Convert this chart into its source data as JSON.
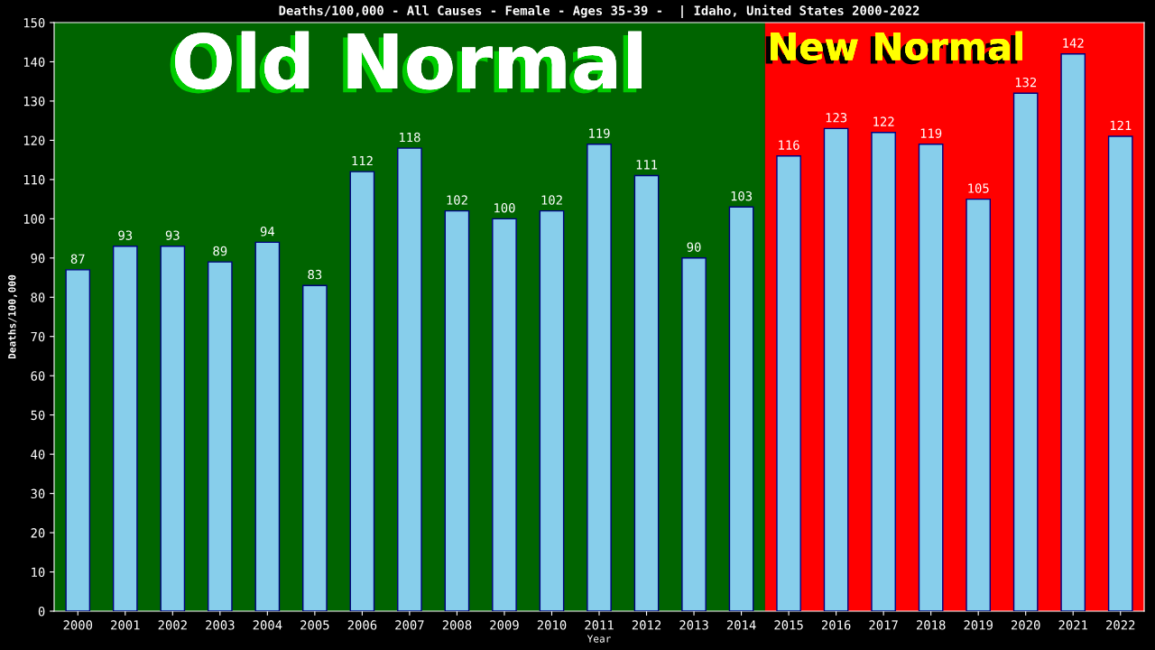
{
  "chart_data": {
    "type": "bar",
    "title": "Deaths/100,000 - All Causes - Female - Ages 35-39 -  | Idaho, United States 2000-2022",
    "xlabel": "Year",
    "ylabel": "Deaths/100,000",
    "categories": [
      "2000",
      "2001",
      "2002",
      "2003",
      "2004",
      "2005",
      "2006",
      "2007",
      "2008",
      "2009",
      "2010",
      "2011",
      "2012",
      "2013",
      "2014",
      "2015",
      "2016",
      "2017",
      "2018",
      "2019",
      "2020",
      "2021",
      "2022"
    ],
    "values": [
      87,
      93,
      93,
      89,
      94,
      83,
      112,
      118,
      102,
      100,
      102,
      119,
      111,
      90,
      103,
      116,
      123,
      122,
      119,
      105,
      132,
      142,
      121
    ],
    "color": "#87ceeb",
    "data_labels": true,
    "ylim": [
      0,
      150
    ],
    "yticks": [
      0,
      10,
      20,
      30,
      40,
      50,
      60,
      70,
      80,
      90,
      100,
      110,
      120,
      130,
      140,
      150
    ],
    "grid": false,
    "legend": false,
    "bands": [
      {
        "axis": "x",
        "from": "2000",
        "to": "2014",
        "label": "Old Normal",
        "color": "#006400"
      },
      {
        "axis": "x",
        "from": "2015",
        "to": "2022",
        "label": "New Normal",
        "color": "#ff0000"
      }
    ]
  }
}
